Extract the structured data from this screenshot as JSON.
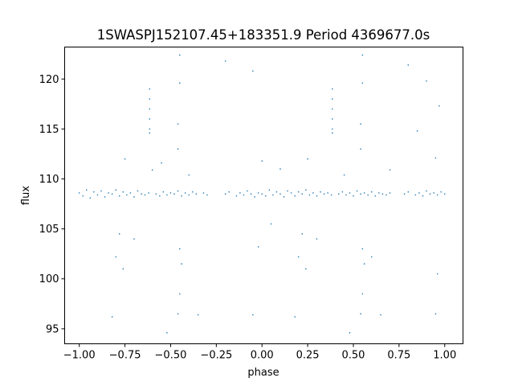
{
  "chart_data": {
    "type": "scatter",
    "title": "1SWASPJ152107.45+183351.9 Period 4369677.0s",
    "xlabel": "phase",
    "ylabel": "flux",
    "xlim": [
      -1.08,
      1.1
    ],
    "ylim": [
      93.5,
      123.2
    ],
    "xticks": [
      -1.0,
      -0.75,
      -0.5,
      -0.25,
      0.0,
      0.25,
      0.5,
      0.75,
      1.0
    ],
    "xtick_labels": [
      "−1.00",
      "−0.75",
      "−0.50",
      "−0.25",
      "0.00",
      "0.25",
      "0.50",
      "0.75",
      "1.00"
    ],
    "yticks": [
      95,
      100,
      105,
      110,
      115,
      120
    ],
    "ytick_labels": [
      "95",
      "100",
      "105",
      "110",
      "115",
      "120"
    ],
    "grid": false,
    "marker_color": "#1f77b4",
    "series": [
      {
        "points": [
          [
            -1.0,
            108.6
          ],
          [
            -0.98,
            108.3
          ],
          [
            -0.96,
            108.9
          ],
          [
            -0.94,
            108.1
          ],
          [
            -0.92,
            108.7
          ],
          [
            -0.9,
            108.4
          ],
          [
            -0.88,
            108.8
          ],
          [
            -0.86,
            108.2
          ],
          [
            -0.84,
            108.6
          ],
          [
            -0.82,
            108.5
          ],
          [
            -0.8,
            108.9
          ],
          [
            -0.78,
            108.3
          ],
          [
            -0.76,
            108.7
          ],
          [
            -0.74,
            108.4
          ],
          [
            -0.72,
            108.6
          ],
          [
            -0.7,
            108.2
          ],
          [
            -0.68,
            108.8
          ],
          [
            -0.66,
            108.5
          ],
          [
            -0.64,
            108.4
          ],
          [
            -0.62,
            108.6
          ],
          [
            -0.58,
            108.5
          ],
          [
            -0.56,
            108.3
          ],
          [
            -0.54,
            108.7
          ],
          [
            -0.52,
            108.4
          ],
          [
            -0.5,
            108.6
          ],
          [
            -0.48,
            108.5
          ],
          [
            -0.46,
            108.8
          ],
          [
            -0.44,
            108.3
          ],
          [
            -0.42,
            108.6
          ],
          [
            -0.4,
            108.4
          ],
          [
            -0.38,
            108.7
          ],
          [
            -0.36,
            108.5
          ],
          [
            -0.32,
            108.6
          ],
          [
            -0.3,
            108.4
          ],
          [
            -0.2,
            108.5
          ],
          [
            -0.18,
            108.7
          ],
          [
            -0.14,
            108.3
          ],
          [
            -0.12,
            108.6
          ],
          [
            -0.1,
            108.4
          ],
          [
            -0.08,
            108.8
          ],
          [
            -0.06,
            108.5
          ],
          [
            -0.04,
            108.2
          ],
          [
            -0.02,
            108.6
          ],
          [
            0.0,
            108.5
          ],
          [
            0.02,
            108.3
          ],
          [
            0.04,
            108.9
          ],
          [
            0.06,
            108.4
          ],
          [
            0.08,
            108.7
          ],
          [
            0.1,
            108.5
          ],
          [
            0.12,
            108.2
          ],
          [
            0.14,
            108.8
          ],
          [
            0.16,
            108.6
          ],
          [
            0.18,
            108.3
          ],
          [
            0.2,
            108.7
          ],
          [
            0.22,
            108.5
          ],
          [
            0.24,
            108.9
          ],
          [
            0.26,
            108.4
          ],
          [
            0.28,
            108.6
          ],
          [
            0.3,
            108.3
          ],
          [
            0.32,
            108.7
          ],
          [
            0.34,
            108.5
          ],
          [
            0.36,
            108.6
          ],
          [
            0.38,
            108.4
          ],
          [
            0.42,
            108.5
          ],
          [
            0.44,
            108.7
          ],
          [
            0.46,
            108.4
          ],
          [
            0.48,
            108.6
          ],
          [
            0.5,
            108.3
          ],
          [
            0.52,
            108.8
          ],
          [
            0.54,
            108.5
          ],
          [
            0.56,
            108.6
          ],
          [
            0.58,
            108.4
          ],
          [
            0.6,
            108.7
          ],
          [
            0.62,
            108.3
          ],
          [
            0.64,
            108.6
          ],
          [
            0.66,
            108.5
          ],
          [
            0.68,
            108.4
          ],
          [
            0.7,
            108.6
          ],
          [
            0.78,
            108.5
          ],
          [
            0.8,
            108.7
          ],
          [
            0.84,
            108.4
          ],
          [
            0.86,
            108.6
          ],
          [
            0.88,
            108.3
          ],
          [
            0.9,
            108.8
          ],
          [
            0.92,
            108.5
          ],
          [
            0.94,
            108.6
          ],
          [
            0.96,
            108.4
          ],
          [
            0.98,
            108.7
          ],
          [
            1.0,
            108.5
          ],
          [
            -0.615,
            119.0
          ],
          [
            -0.615,
            118.0
          ],
          [
            -0.615,
            117.0
          ],
          [
            -0.615,
            116.0
          ],
          [
            -0.615,
            115.0
          ],
          [
            -0.615,
            114.6
          ],
          [
            0.385,
            119.0
          ],
          [
            0.385,
            118.0
          ],
          [
            0.385,
            117.0
          ],
          [
            0.385,
            116.0
          ],
          [
            0.385,
            115.0
          ],
          [
            0.385,
            114.6
          ],
          [
            -0.45,
            122.4
          ],
          [
            -0.45,
            119.6
          ],
          [
            -0.46,
            115.5
          ],
          [
            -0.46,
            113.0
          ],
          [
            -0.45,
            103.0
          ],
          [
            -0.44,
            101.5
          ],
          [
            -0.45,
            98.5
          ],
          [
            -0.46,
            96.5
          ],
          [
            0.55,
            122.4
          ],
          [
            0.55,
            119.6
          ],
          [
            0.54,
            115.5
          ],
          [
            0.54,
            113.0
          ],
          [
            0.55,
            103.0
          ],
          [
            0.56,
            101.5
          ],
          [
            0.55,
            98.5
          ],
          [
            0.54,
            96.5
          ],
          [
            -0.75,
            112.0
          ],
          [
            -0.78,
            104.5
          ],
          [
            -0.8,
            102.2
          ],
          [
            -0.82,
            96.2
          ],
          [
            -0.76,
            101.0
          ],
          [
            -0.7,
            104.0
          ],
          [
            0.25,
            112.0
          ],
          [
            0.22,
            104.5
          ],
          [
            0.2,
            102.2
          ],
          [
            0.18,
            96.2
          ],
          [
            0.24,
            101.0
          ],
          [
            0.3,
            104.0
          ],
          [
            -0.6,
            110.9
          ],
          [
            -0.55,
            111.6
          ],
          [
            -0.4,
            110.4
          ],
          [
            -0.35,
            96.4
          ],
          [
            -0.52,
            94.6
          ],
          [
            -0.2,
            121.8
          ],
          [
            -0.05,
            120.8
          ],
          [
            0.0,
            111.8
          ],
          [
            -0.02,
            103.2
          ],
          [
            -0.05,
            96.4
          ],
          [
            0.05,
            105.5
          ],
          [
            0.1,
            111.0
          ],
          [
            0.45,
            110.4
          ],
          [
            0.48,
            94.6
          ],
          [
            0.65,
            96.4
          ],
          [
            0.6,
            102.2
          ],
          [
            0.7,
            110.9
          ],
          [
            0.8,
            121.4
          ],
          [
            0.85,
            114.8
          ],
          [
            0.9,
            119.8
          ],
          [
            0.95,
            112.1
          ],
          [
            0.96,
            100.5
          ],
          [
            0.95,
            96.5
          ],
          [
            0.97,
            117.3
          ]
        ]
      }
    ]
  }
}
